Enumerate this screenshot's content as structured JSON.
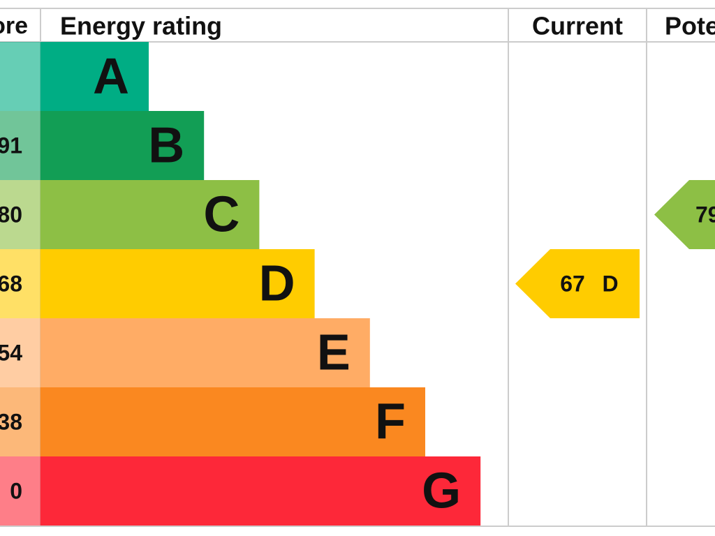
{
  "header": {
    "score": "ore",
    "energy_rating": "Energy rating",
    "current": "Current",
    "potential": "Pote"
  },
  "bands": [
    {
      "letter": "A",
      "range": null,
      "color": "#00ad84"
    },
    {
      "letter": "B",
      "range": "91",
      "color": "#129e55"
    },
    {
      "letter": "C",
      "range": "80",
      "color": "#8dbf45"
    },
    {
      "letter": "D",
      "range": "68",
      "color": "#ffcc00"
    },
    {
      "letter": "E",
      "range": "54",
      "color": "#ffac65"
    },
    {
      "letter": "F",
      "range": "38",
      "color": "#fa8820"
    },
    {
      "letter": "G",
      "range": "0",
      "color": "#fd2839"
    }
  ],
  "current": {
    "value": "67",
    "letter": "D",
    "color": "#ffcc00"
  },
  "potential": {
    "value": "79",
    "color": "#8dbf45"
  }
}
